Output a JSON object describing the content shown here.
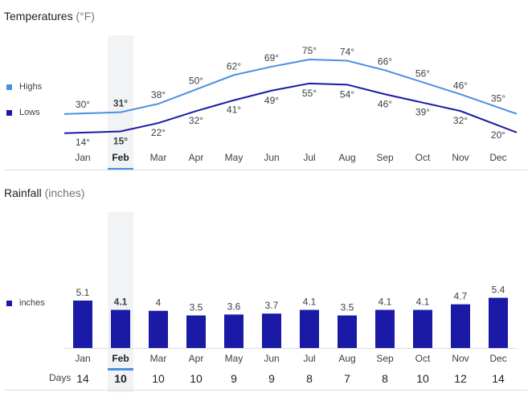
{
  "temperatures": {
    "title": "Temperatures",
    "unit": "(°F)",
    "selected_month": "Feb",
    "chart_data": {
      "type": "line",
      "categories": [
        "Jan",
        "Feb",
        "Mar",
        "Apr",
        "May",
        "Jun",
        "Jul",
        "Aug",
        "Sep",
        "Oct",
        "Nov",
        "Dec"
      ],
      "series": [
        {
          "name": "Highs",
          "values": [
            30,
            31,
            38,
            50,
            62,
            69,
            75,
            74,
            66,
            56,
            46,
            35
          ],
          "labels": [
            "30°",
            "31°",
            "38°",
            "50°",
            "62°",
            "69°",
            "75°",
            "74°",
            "66°",
            "56°",
            "46°",
            "35°"
          ],
          "color": "#4a90e2"
        },
        {
          "name": "Lows",
          "values": [
            14,
            15,
            22,
            32,
            41,
            49,
            55,
            54,
            46,
            39,
            32,
            20
          ],
          "labels": [
            "14°",
            "15°",
            "22°",
            "32°",
            "41°",
            "49°",
            "55°",
            "54°",
            "46°",
            "39°",
            "32°",
            "20°"
          ],
          "color": "#1a1aa6"
        }
      ],
      "title": "",
      "xlabel": "",
      "ylabel": "",
      "legend": "left"
    }
  },
  "rainfall": {
    "title": "Rainfall",
    "unit": "(inches)",
    "selected_month": "Feb",
    "chart_data": {
      "type": "bar",
      "categories": [
        "Jan",
        "Feb",
        "Mar",
        "Apr",
        "May",
        "Jun",
        "Jul",
        "Aug",
        "Sep",
        "Oct",
        "Nov",
        "Dec"
      ],
      "series": [
        {
          "name": "inches",
          "values": [
            5.1,
            4.1,
            4,
            3.5,
            3.6,
            3.7,
            4.1,
            3.5,
            4.1,
            4.1,
            4.7,
            5.4
          ],
          "labels": [
            "5.1",
            "4.1",
            "4",
            "3.5",
            "3.6",
            "3.7",
            "4.1",
            "3.5",
            "4.1",
            "4.1",
            "4.7",
            "5.4"
          ],
          "color": "#1a1aa6"
        }
      ],
      "title": "",
      "xlabel": "",
      "ylabel": "",
      "legend": "left"
    },
    "days": {
      "label": "Days",
      "values": [
        "14",
        "10",
        "10",
        "10",
        "9",
        "9",
        "8",
        "7",
        "8",
        "10",
        "12",
        "14"
      ]
    }
  }
}
